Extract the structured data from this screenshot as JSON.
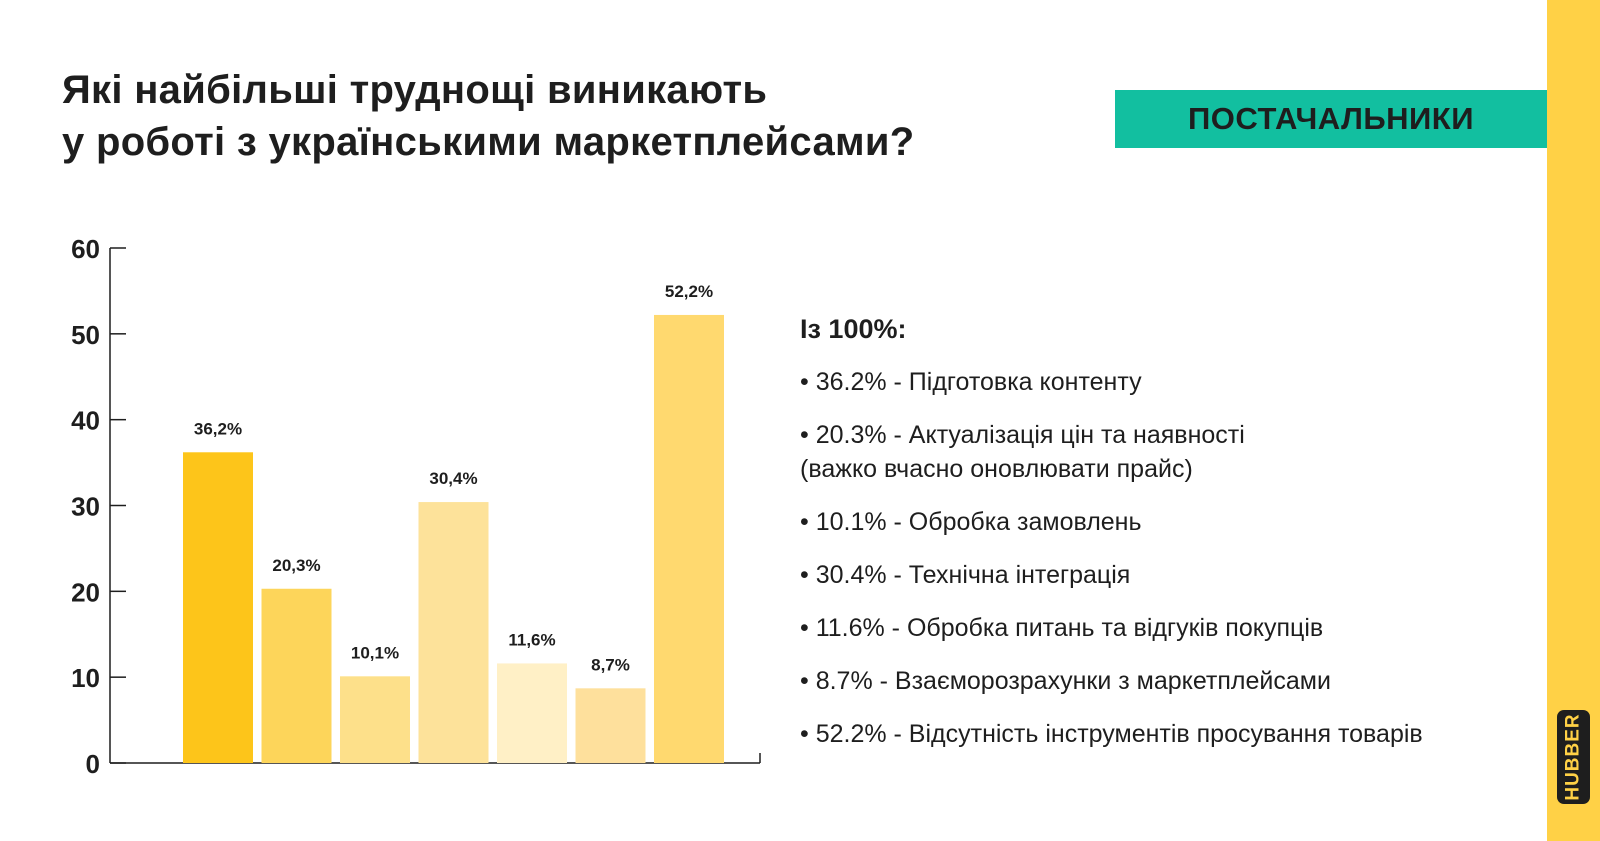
{
  "header": {
    "title_line1": "Які найбільші труднощі виникають",
    "title_line2": "у роботі з українськими маркетплейсами?",
    "badge": "ПОСТАЧАЛЬНИКИ"
  },
  "brand": {
    "logo_text": "HUBBER"
  },
  "colors": {
    "accent_teal": "#12bfa0",
    "brand_yellow": "#ffd146",
    "text_dark": "#1e1e1e"
  },
  "chart_data": {
    "type": "bar",
    "title": "",
    "xlabel": "",
    "ylabel": "",
    "ylim": [
      0,
      60
    ],
    "yticks": [
      "0",
      "10",
      "20",
      "30",
      "40",
      "50",
      "60"
    ],
    "values": [
      36.2,
      20.3,
      10.1,
      30.4,
      11.6,
      8.7,
      52.2
    ],
    "value_labels": [
      "36,2%",
      "20,3%",
      "10,1%",
      "30,4%",
      "11,6%",
      "8,7%",
      "52,2%"
    ],
    "colors": [
      "#fdc51a",
      "#fdd55a",
      "#fde08a",
      "#fde29a",
      "#fff0c6",
      "#fee09c",
      "#ffd96f"
    ],
    "grid": false
  },
  "legend": {
    "heading": "Із 100%:",
    "items": [
      "• 36.2% - Підготовка контенту",
      "• 20.3% - Актуалізація цін та наявності (важко вчасно оновлювати прайс)",
      "• 10.1% - Обробка замовлень",
      "• 30.4% - Технічна інтеграція",
      "• 11.6% - Обробка питань та відгуків покупців",
      "• 8.7% - Взаєморозрахунки з маркетплейсами",
      "• 52.2% - Відсутність інструментів просування товарів"
    ]
  }
}
